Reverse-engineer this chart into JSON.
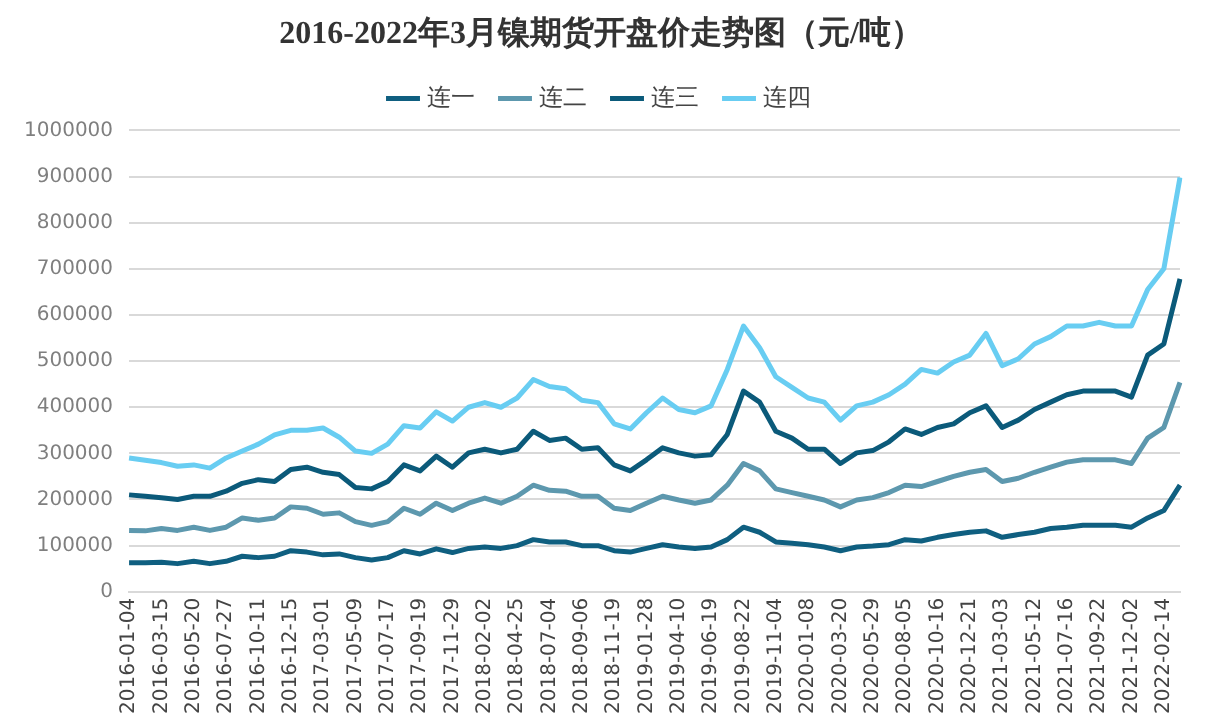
{
  "chart_data": {
    "type": "line",
    "title": "2016-2022年3月镍期货开盘价走势图（元/吨）",
    "categories": [
      "2016-01-04",
      null,
      "2016-03-15",
      null,
      "2016-05-20",
      null,
      "2016-07-27",
      null,
      "2016-10-11",
      null,
      "2016-12-15",
      null,
      "2017-03-01",
      null,
      "2017-05-09",
      null,
      "2017-07-17",
      null,
      "2017-09-19",
      null,
      "2017-11-29",
      null,
      "2018-02-02",
      null,
      "2018-04-25",
      null,
      "2018-07-04",
      null,
      "2018-09-06",
      null,
      "2018-11-19",
      null,
      "2019-01-28",
      null,
      "2019-04-10",
      null,
      "2019-06-19",
      null,
      "2019-08-22",
      null,
      "2019-11-04",
      null,
      "2020-01-08",
      null,
      "2020-03-20",
      null,
      "2020-05-29",
      null,
      "2020-08-05",
      null,
      "2020-10-16",
      null,
      "2020-12-21",
      null,
      "2021-03-03",
      null,
      "2021-05-12",
      null,
      "2021-07-16",
      null,
      "2021-09-22",
      null,
      "2021-12-02",
      null,
      "2022-02-14",
      null
    ],
    "series": [
      {
        "name": "连一",
        "color": "#0f5f80",
        "values": [
          63000,
          63000,
          64000,
          61000,
          66000,
          61000,
          66000,
          77000,
          74000,
          77000,
          89000,
          86000,
          80000,
          82000,
          74000,
          69000,
          74000,
          89000,
          82000,
          93000,
          85000,
          94000,
          97000,
          94000,
          100000,
          113000,
          108000,
          108000,
          100000,
          100000,
          89000,
          86000,
          94000,
          102000,
          97000,
          94000,
          97000,
          113000,
          140000,
          129000,
          108000,
          105000,
          102000,
          97000,
          89000,
          97000,
          99000,
          102000,
          113000,
          110000,
          118000,
          124000,
          129000,
          132000,
          118000,
          124000,
          129000,
          137000,
          140000,
          144000,
          144000,
          144000,
          140000,
          160000,
          176000,
          231000
        ]
      },
      {
        "name": "连二",
        "color": "#5d98ae",
        "values": [
          133000,
          132000,
          137000,
          133000,
          140000,
          133000,
          140000,
          160000,
          155000,
          160000,
          184000,
          181000,
          168000,
          171000,
          152000,
          144000,
          152000,
          181000,
          168000,
          192000,
          176000,
          192000,
          203000,
          192000,
          207000,
          231000,
          220000,
          218000,
          207000,
          207000,
          181000,
          176000,
          192000,
          207000,
          199000,
          192000,
          199000,
          231000,
          278000,
          262000,
          223000,
          215000,
          207000,
          199000,
          184000,
          199000,
          204000,
          215000,
          231000,
          228000,
          239000,
          250000,
          259000,
          265000,
          239000,
          246000,
          259000,
          270000,
          281000,
          286000,
          286000,
          286000,
          278000,
          333000,
          356000,
          454000
        ]
      },
      {
        "name": "连三",
        "color": "#0b5a7a",
        "values": [
          210000,
          207000,
          204000,
          200000,
          207000,
          207000,
          218000,
          235000,
          243000,
          239000,
          265000,
          270000,
          259000,
          254000,
          226000,
          223000,
          239000,
          275000,
          262000,
          294000,
          270000,
          301000,
          309000,
          301000,
          309000,
          348000,
          328000,
          333000,
          309000,
          312000,
          275000,
          262000,
          286000,
          312000,
          301000,
          294000,
          297000,
          341000,
          435000,
          411000,
          348000,
          333000,
          309000,
          309000,
          278000,
          301000,
          306000,
          325000,
          353000,
          341000,
          356000,
          364000,
          388000,
          403000,
          356000,
          372000,
          395000,
          411000,
          427000,
          435000,
          435000,
          435000,
          422000,
          513000,
          537000,
          678000
        ]
      },
      {
        "name": "连四",
        "color": "#68cdf2",
        "values": [
          290000,
          285000,
          280000,
          272000,
          275000,
          268000,
          290000,
          305000,
          320000,
          340000,
          350000,
          350000,
          355000,
          335000,
          305000,
          300000,
          320000,
          360000,
          355000,
          390000,
          370000,
          400000,
          410000,
          400000,
          420000,
          460000,
          445000,
          440000,
          415000,
          410000,
          364000,
          353000,
          388000,
          420000,
          395000,
          388000,
          403000,
          482000,
          576000,
          529000,
          466000,
          443000,
          420000,
          411000,
          372000,
          403000,
          411000,
          427000,
          450000,
          482000,
          474000,
          498000,
          513000,
          560000,
          490000,
          505000,
          537000,
          553000,
          576000,
          576000,
          584000,
          576000,
          576000,
          655000,
          700000,
          898000
        ]
      }
    ],
    "ylim": [
      0,
      1000000
    ],
    "yticks": [
      0,
      100000,
      200000,
      300000,
      400000,
      500000,
      600000,
      700000,
      800000,
      900000,
      1000000
    ],
    "grid": "y",
    "legend": "top",
    "marker": "none",
    "line_style": "solid"
  }
}
